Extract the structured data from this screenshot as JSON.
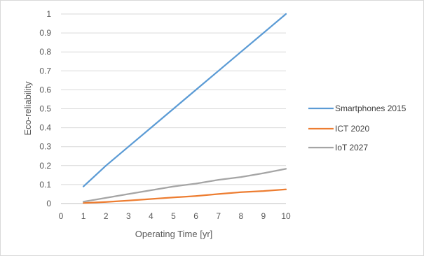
{
  "chart_data": {
    "type": "line",
    "title": "",
    "xlabel": "Operating Time [yr]",
    "ylabel": "Eco-reliability",
    "xlim": [
      0,
      10
    ],
    "ylim": [
      0,
      1
    ],
    "x_ticks": [
      "0",
      "1",
      "2",
      "3",
      "4",
      "5",
      "6",
      "7",
      "8",
      "9",
      "10"
    ],
    "y_ticks": [
      "0",
      "0.1",
      "0.2",
      "0.3",
      "0.4",
      "0.5",
      "0.6",
      "0.7",
      "0.8",
      "0.9",
      "1"
    ],
    "grid": "horizontal",
    "legend_position": "right",
    "x": [
      1,
      2,
      3,
      4,
      5,
      6,
      7,
      8,
      9,
      10
    ],
    "series": [
      {
        "name": "Smartphones 2015",
        "color": "#5b9bd5",
        "values": [
          0.09,
          0.2,
          0.3,
          0.4,
          0.5,
          0.6,
          0.7,
          0.8,
          0.9,
          1.0
        ]
      },
      {
        "name": "ICT 2020",
        "color": "#ed7d31",
        "values": [
          0.003,
          0.008,
          0.016,
          0.024,
          0.032,
          0.04,
          0.05,
          0.06,
          0.066,
          0.075
        ]
      },
      {
        "name": "IoT 2027",
        "color": "#a5a5a5",
        "values": [
          0.01,
          0.03,
          0.05,
          0.07,
          0.09,
          0.105,
          0.125,
          0.14,
          0.16,
          0.183
        ]
      }
    ]
  }
}
